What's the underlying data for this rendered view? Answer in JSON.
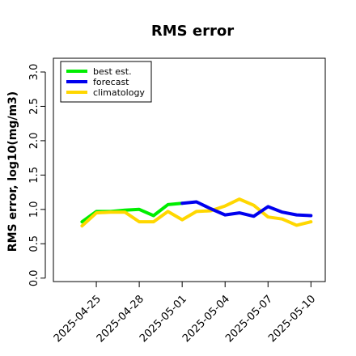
{
  "chart_data": {
    "type": "line",
    "title": "RMS error",
    "xlabel": "",
    "ylabel": "RMS error, log10(mg/m3)",
    "xlim": [
      "2025-04-22",
      "2025-05-11"
    ],
    "ylim": [
      -0.05,
      3.2
    ],
    "yticks": [
      0.0,
      0.5,
      1.0,
      1.5,
      2.0,
      2.5,
      3.0
    ],
    "ytick_labels": [
      "0.0",
      "0.5",
      "1.0",
      "1.5",
      "2.0",
      "2.5",
      "3.0"
    ],
    "xticks": [
      "2025-04-25",
      "2025-04-28",
      "2025-05-01",
      "2025-05-04",
      "2025-05-07",
      "2025-05-10"
    ],
    "highlight_xtick": "2025-05-01",
    "highlight_color": "#228B22",
    "grid": false,
    "legend_position": "top-left",
    "series": [
      {
        "name": "best est.",
        "color": "#00ee00",
        "x": [
          "2025-04-24",
          "2025-04-25",
          "2025-04-26",
          "2025-04-27",
          "2025-04-28",
          "2025-04-29",
          "2025-04-30",
          "2025-05-01"
        ],
        "y": [
          0.82,
          0.97,
          0.97,
          0.99,
          1.0,
          0.91,
          1.07,
          1.09
        ]
      },
      {
        "name": "forecast",
        "color": "#0000ee",
        "x": [
          "2025-05-01",
          "2025-05-02",
          "2025-05-03",
          "2025-05-04",
          "2025-05-05",
          "2025-05-06",
          "2025-05-07",
          "2025-05-08",
          "2025-05-09",
          "2025-05-10"
        ],
        "y": [
          1.09,
          1.11,
          1.01,
          0.92,
          0.95,
          0.9,
          1.04,
          0.96,
          0.92,
          0.91
        ]
      },
      {
        "name": "climatology",
        "color": "#ffd700",
        "x": [
          "2025-04-24",
          "2025-04-25",
          "2025-04-26",
          "2025-04-27",
          "2025-04-28",
          "2025-04-29",
          "2025-04-30",
          "2025-05-01",
          "2025-05-02",
          "2025-05-03",
          "2025-05-04",
          "2025-05-05",
          "2025-05-06",
          "2025-05-07",
          "2025-05-08",
          "2025-05-09",
          "2025-05-10"
        ],
        "y": [
          0.76,
          0.95,
          0.96,
          0.96,
          0.82,
          0.82,
          0.97,
          0.85,
          0.97,
          0.98,
          1.05,
          1.15,
          1.06,
          0.89,
          0.86,
          0.77,
          0.82
        ]
      }
    ]
  }
}
